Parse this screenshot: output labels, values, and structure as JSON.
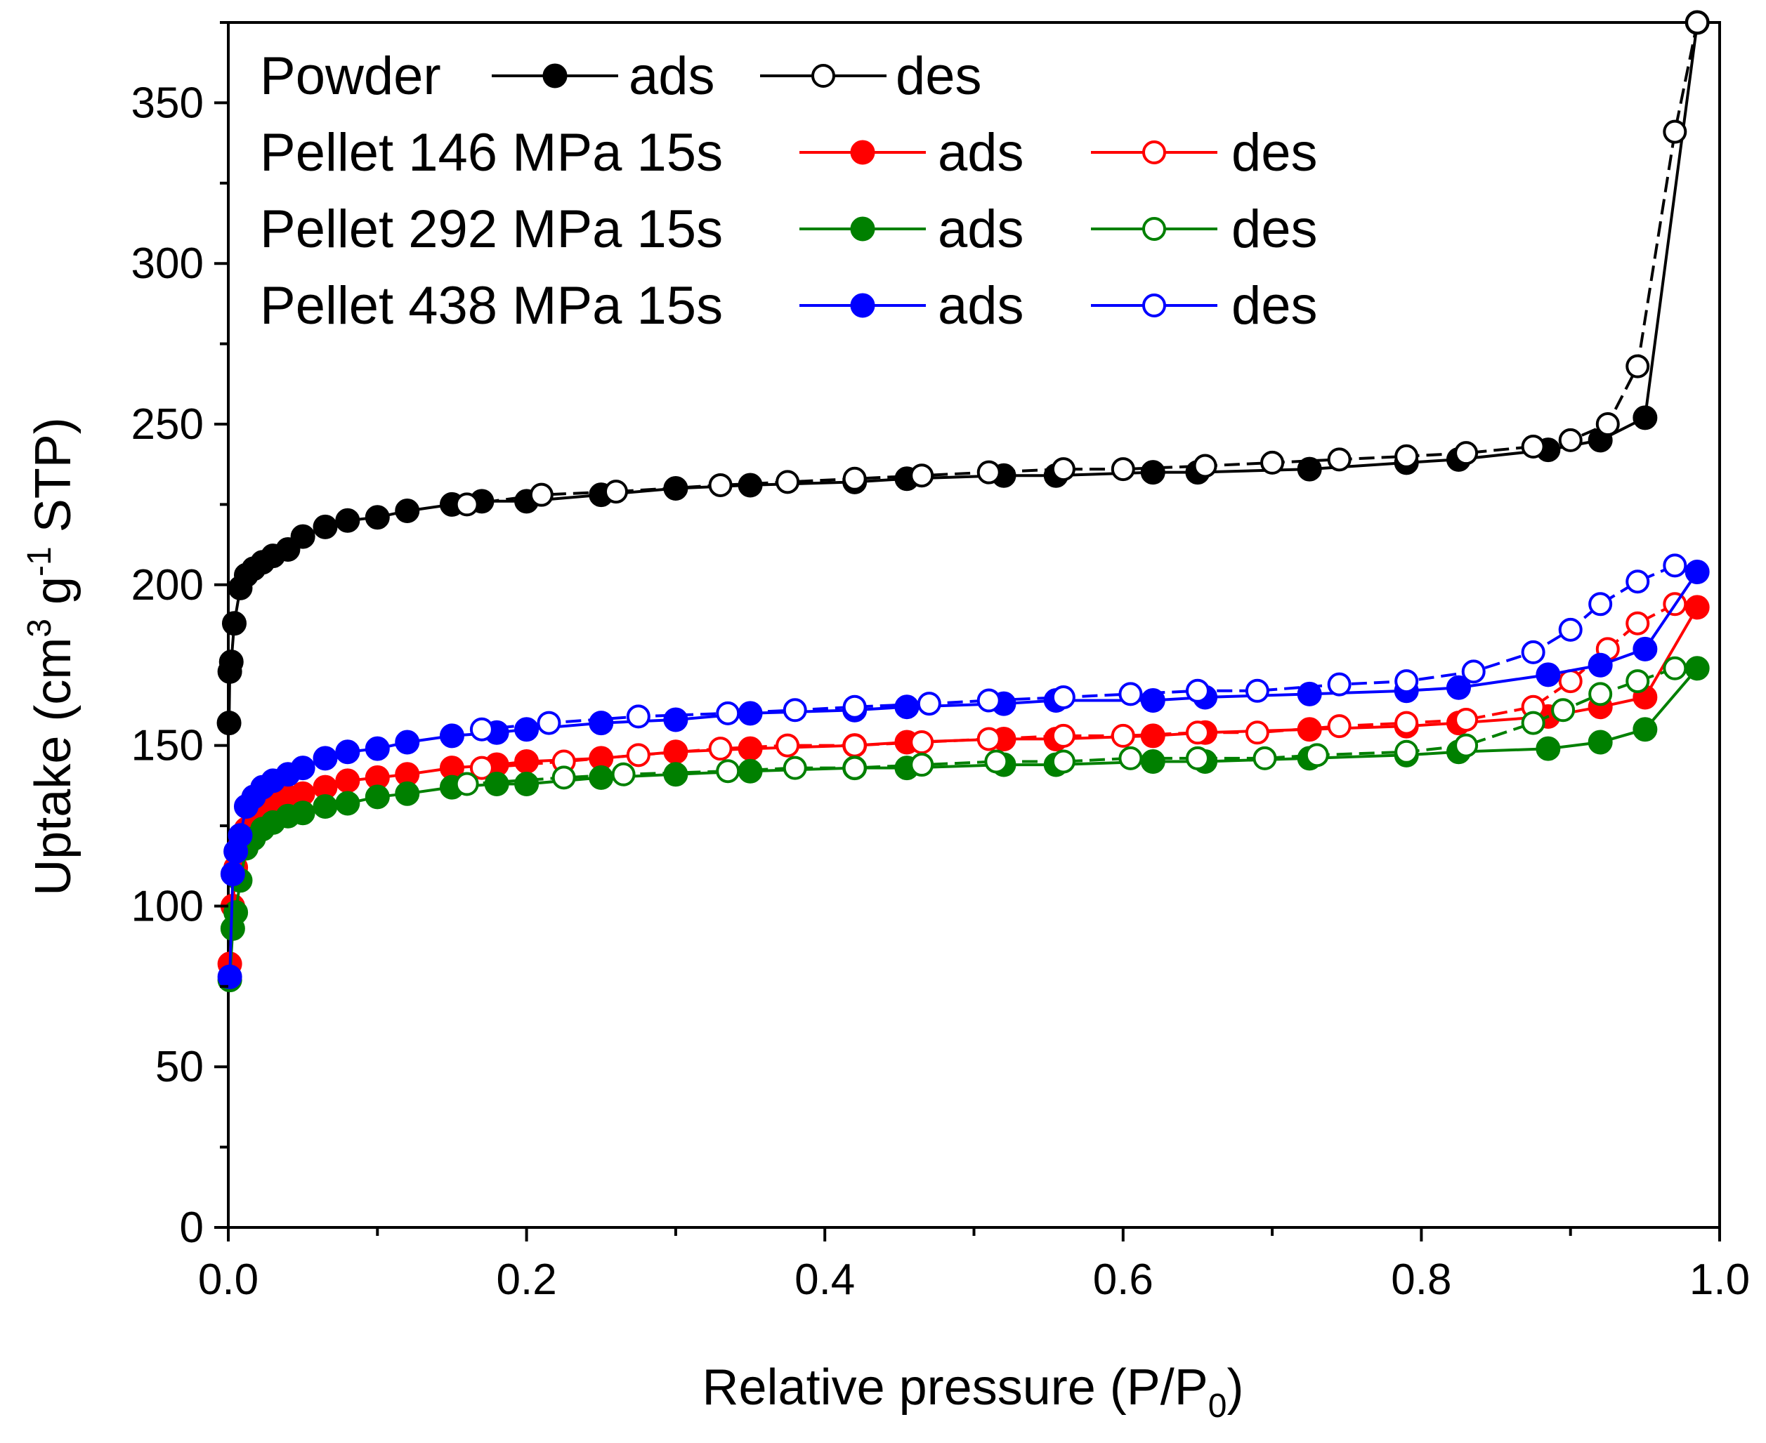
{
  "chart_data": {
    "type": "scatter",
    "title": "",
    "xlabel": "Relative pressure (P/P",
    "xlabel_sub": "0",
    "xlabel_end": ")",
    "ylabel_parts": {
      "a": "Uptake (cm",
      "sup1": "3",
      "b": " g",
      "sup2": "-1",
      "c": " STP)"
    },
    "xlim": [
      0.0,
      1.0
    ],
    "ylim": [
      0,
      375
    ],
    "x_ticks": [
      "0.0",
      "0.2",
      "0.4",
      "0.6",
      "0.8",
      "1.0"
    ],
    "y_ticks": [
      "0",
      "50",
      "100",
      "150",
      "200",
      "250",
      "300",
      "350"
    ],
    "legend": {
      "position": "top-left",
      "rows": [
        {
          "name": "Powder",
          "color": "#000000",
          "ads": "ads",
          "des": "des"
        },
        {
          "name": "Pellet 146 MPa 15s",
          "color": "#ff0000",
          "ads": "ads",
          "des": "des"
        },
        {
          "name": "Pellet 292 MPa 15s",
          "color": "#008000",
          "ads": "ads",
          "des": "des"
        },
        {
          "name": "Pellet 438 MPa 15s",
          "color": "#0000ff",
          "ads": "ads",
          "des": "des"
        }
      ]
    },
    "series": [
      {
        "name": "Powder ads",
        "color": "#000000",
        "marker": "filled",
        "x": [
          0.0005,
          0.001,
          0.002,
          0.004,
          0.008,
          0.012,
          0.017,
          0.023,
          0.03,
          0.04,
          0.05,
          0.065,
          0.08,
          0.1,
          0.12,
          0.15,
          0.17,
          0.2,
          0.25,
          0.3,
          0.35,
          0.42,
          0.455,
          0.52,
          0.555,
          0.62,
          0.65,
          0.725,
          0.79,
          0.825,
          0.885,
          0.92,
          0.95,
          0.985
        ],
        "y": [
          157,
          173,
          176,
          188,
          199,
          203,
          205,
          207,
          209,
          211,
          215,
          218,
          220,
          221,
          223,
          225,
          226,
          226,
          228,
          230,
          231,
          232,
          233,
          234,
          234,
          235,
          235,
          236,
          238,
          239,
          242,
          245,
          252,
          375
        ]
      },
      {
        "name": "Powder des",
        "color": "#000000",
        "marker": "open",
        "x": [
          0.985,
          0.97,
          0.945,
          0.925,
          0.9,
          0.875,
          0.83,
          0.79,
          0.745,
          0.7,
          0.655,
          0.6,
          0.56,
          0.51,
          0.465,
          0.42,
          0.375,
          0.33,
          0.26,
          0.21,
          0.16
        ],
        "y": [
          375,
          341,
          268,
          250,
          245,
          243,
          241,
          240,
          239,
          238,
          237,
          236,
          236,
          235,
          234,
          233,
          232,
          231,
          229,
          228,
          225
        ]
      },
      {
        "name": "Pellet 146 MPa 15s ads",
        "color": "#ff0000",
        "marker": "filled",
        "x": [
          0.001,
          0.003,
          0.005,
          0.008,
          0.012,
          0.017,
          0.023,
          0.03,
          0.04,
          0.05,
          0.065,
          0.08,
          0.1,
          0.12,
          0.15,
          0.18,
          0.2,
          0.25,
          0.3,
          0.35,
          0.42,
          0.455,
          0.52,
          0.555,
          0.62,
          0.655,
          0.725,
          0.79,
          0.825,
          0.885,
          0.92,
          0.95,
          0.985
        ],
        "y": [
          82,
          100,
          112,
          119,
          124,
          127,
          130,
          132,
          134,
          135,
          137,
          139,
          140,
          141,
          143,
          144,
          145,
          146,
          148,
          149,
          150,
          151,
          152,
          152,
          153,
          154,
          155,
          156,
          157,
          159,
          162,
          165,
          193
        ]
      },
      {
        "name": "Pellet 146 MPa 15s des",
        "color": "#ff0000",
        "marker": "open",
        "x": [
          0.97,
          0.945,
          0.925,
          0.9,
          0.875,
          0.83,
          0.79,
          0.745,
          0.69,
          0.65,
          0.6,
          0.56,
          0.51,
          0.465,
          0.42,
          0.375,
          0.33,
          0.275,
          0.225,
          0.17
        ],
        "y": [
          194,
          188,
          180,
          170,
          162,
          158,
          157,
          156,
          154,
          154,
          153,
          153,
          152,
          151,
          150,
          150,
          149,
          147,
          145,
          143
        ]
      },
      {
        "name": "Pellet 292 MPa 15s ads",
        "color": "#008000",
        "marker": "filled",
        "x": [
          0.001,
          0.003,
          0.005,
          0.008,
          0.012,
          0.017,
          0.023,
          0.03,
          0.04,
          0.05,
          0.065,
          0.08,
          0.1,
          0.12,
          0.15,
          0.18,
          0.2,
          0.25,
          0.3,
          0.35,
          0.42,
          0.455,
          0.52,
          0.555,
          0.62,
          0.655,
          0.725,
          0.79,
          0.825,
          0.885,
          0.92,
          0.95,
          0.985
        ],
        "y": [
          77,
          93,
          98,
          108,
          118,
          121,
          124,
          126,
          128,
          129,
          131,
          132,
          134,
          135,
          137,
          138,
          138,
          140,
          141,
          142,
          143,
          143,
          144,
          144,
          145,
          145,
          146,
          147,
          148,
          149,
          151,
          155,
          174
        ]
      },
      {
        "name": "Pellet 292 MPa 15s des",
        "color": "#008000",
        "marker": "open",
        "x": [
          0.97,
          0.945,
          0.92,
          0.895,
          0.875,
          0.83,
          0.79,
          0.73,
          0.695,
          0.65,
          0.605,
          0.56,
          0.515,
          0.465,
          0.42,
          0.38,
          0.335,
          0.265,
          0.225,
          0.16
        ],
        "y": [
          174,
          170,
          166,
          161,
          157,
          150,
          148,
          147,
          146,
          146,
          146,
          145,
          145,
          144,
          143,
          143,
          142,
          141,
          140,
          138
        ]
      },
      {
        "name": "Pellet 438 MPa 15s ads",
        "color": "#0000ff",
        "marker": "filled",
        "x": [
          0.001,
          0.003,
          0.005,
          0.008,
          0.012,
          0.017,
          0.023,
          0.03,
          0.04,
          0.05,
          0.065,
          0.08,
          0.1,
          0.12,
          0.15,
          0.18,
          0.2,
          0.25,
          0.3,
          0.35,
          0.42,
          0.455,
          0.52,
          0.555,
          0.62,
          0.655,
          0.725,
          0.79,
          0.825,
          0.885,
          0.92,
          0.95,
          0.985
        ],
        "y": [
          78,
          110,
          117,
          122,
          131,
          134,
          137,
          139,
          141,
          143,
          146,
          148,
          149,
          151,
          153,
          154,
          155,
          157,
          158,
          160,
          161,
          162,
          163,
          164,
          164,
          165,
          166,
          167,
          168,
          172,
          175,
          180,
          204
        ]
      },
      {
        "name": "Pellet 438 MPa 15s des",
        "color": "#0000ff",
        "marker": "open",
        "x": [
          0.97,
          0.945,
          0.92,
          0.9,
          0.875,
          0.835,
          0.79,
          0.745,
          0.69,
          0.65,
          0.605,
          0.56,
          0.51,
          0.47,
          0.42,
          0.38,
          0.335,
          0.275,
          0.215,
          0.17
        ],
        "y": [
          206,
          201,
          194,
          186,
          179,
          173,
          170,
          169,
          167,
          167,
          166,
          165,
          164,
          163,
          162,
          161,
          160,
          159,
          157,
          155
        ]
      }
    ]
  }
}
